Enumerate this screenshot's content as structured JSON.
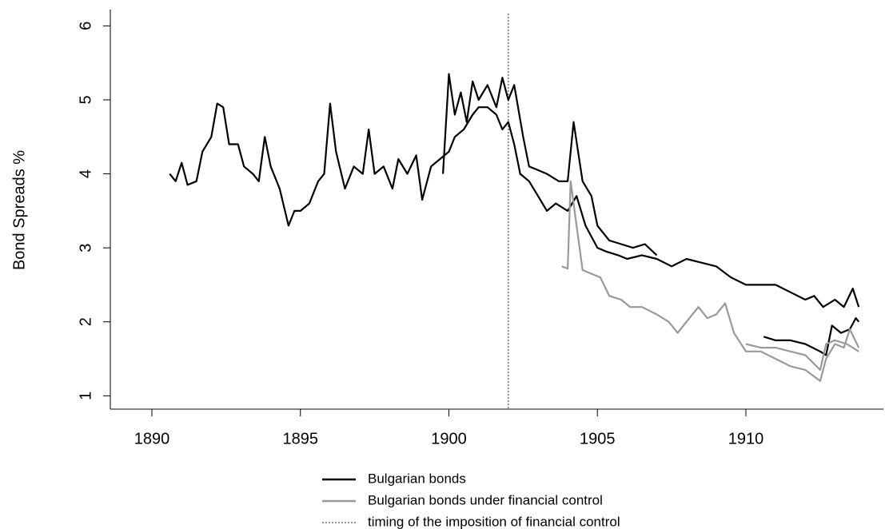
{
  "chart_data": {
    "type": "line",
    "ylabel": "Bond Spreads %",
    "xlim": [
      1888.6,
      1914.63
    ],
    "ylim": [
      0.82,
      6.22
    ],
    "xticks": [
      1890,
      1895,
      1900,
      1905,
      1910
    ],
    "yticks": [
      1,
      2,
      3,
      4,
      5,
      6
    ],
    "legend": "bottom",
    "annotations": [
      {
        "x": 1902,
        "label": "timing of the imposition of financial control"
      }
    ],
    "series": [
      {
        "name": "Bulgarian bonds",
        "color": "#000000",
        "x": [
          1890.6,
          1890.8,
          1891.0,
          1891.2,
          1891.5,
          1891.7,
          1892.0,
          1892.2,
          1892.4,
          1892.6,
          1892.9,
          1893.1,
          1893.4,
          1893.6,
          1893.8,
          1894.0,
          1894.3,
          1894.6,
          1894.8,
          1895.0,
          1895.3,
          1895.6,
          1895.8,
          1896.0,
          1896.2,
          1896.5,
          1896.8,
          1897.1,
          1897.3,
          1897.5,
          1897.8,
          1898.1,
          1898.3,
          1898.6,
          1898.9,
          1899.1,
          1899.4,
          1899.7,
          1900.0,
          1900.2,
          1900.5,
          1900.8,
          1901.0,
          1901.3,
          1901.6,
          1901.8,
          1902.0,
          1902.2,
          1902.4,
          1902.7,
          1903.0,
          1903.3,
          1903.6,
          1904.0,
          1904.3,
          1904.6,
          1905.0,
          1905.3,
          1905.7,
          1906.0,
          1906.5,
          1907.0,
          1907.5,
          1908.0,
          1908.5,
          1909.0,
          1909.5,
          1910.0,
          1910.5,
          1911.0,
          1911.5,
          1912.0,
          1912.3,
          1912.6,
          1913.0,
          1913.3,
          1913.6,
          1913.8
        ],
        "values": [
          4.0,
          3.9,
          4.15,
          3.85,
          3.9,
          4.3,
          4.5,
          4.95,
          4.9,
          4.4,
          4.4,
          4.1,
          4.0,
          3.9,
          4.5,
          4.1,
          3.8,
          3.3,
          3.5,
          3.5,
          3.6,
          3.9,
          4.0,
          4.95,
          4.3,
          3.8,
          4.1,
          4.0,
          4.6,
          4.0,
          4.1,
          3.8,
          4.2,
          4.0,
          4.25,
          3.65,
          4.1,
          4.2,
          4.3,
          4.5,
          4.6,
          4.8,
          4.9,
          4.9,
          4.8,
          4.6,
          4.7,
          4.4,
          4.0,
          3.9,
          3.7,
          3.5,
          3.6,
          3.5,
          3.7,
          3.3,
          3.0,
          2.95,
          2.9,
          2.85,
          2.9,
          2.85,
          2.75,
          2.85,
          2.8,
          2.75,
          2.6,
          2.5,
          2.5,
          2.5,
          2.4,
          2.3,
          2.35,
          2.2,
          2.3,
          2.2,
          2.45,
          2.2
        ]
      },
      {
        "color": "#000000",
        "x": [
          1899.8,
          1900.0,
          1900.2,
          1900.4,
          1900.6,
          1900.8,
          1901.0,
          1901.3,
          1901.6,
          1901.8,
          1902.0,
          1902.2,
          1902.5,
          1902.7,
          1903.0,
          1903.3,
          1903.7,
          1904.0,
          1904.2,
          1904.5,
          1904.8,
          1905.0,
          1905.4,
          1905.8,
          1906.2,
          1906.6,
          1907.0
        ],
        "values": [
          4.0,
          5.35,
          4.8,
          5.1,
          4.7,
          5.25,
          5.0,
          5.2,
          4.9,
          5.3,
          5.0,
          5.2,
          4.5,
          4.1,
          4.05,
          4.0,
          3.9,
          3.9,
          4.7,
          3.9,
          3.7,
          3.3,
          3.1,
          3.05,
          3.0,
          3.05,
          2.9
        ]
      },
      {
        "color": "#000000",
        "x": [
          1910.6,
          1911.0,
          1911.5,
          1912.0,
          1912.5,
          1912.7,
          1912.9,
          1913.2,
          1913.5,
          1913.7,
          1913.8
        ],
        "values": [
          1.8,
          1.75,
          1.75,
          1.7,
          1.6,
          1.55,
          1.95,
          1.85,
          1.9,
          2.05,
          2.0
        ]
      },
      {
        "name": "Bulgarian bonds under financial control",
        "color": "#999999",
        "x": [
          1903.8,
          1904.0,
          1904.1,
          1904.3,
          1904.5,
          1904.8,
          1905.1,
          1905.4,
          1905.8,
          1906.1,
          1906.5,
          1907.0,
          1907.4,
          1907.7,
          1908.0,
          1908.4,
          1908.7,
          1909.0,
          1909.3,
          1909.6,
          1910.0,
          1910.5,
          1911.0,
          1911.5,
          1912.0,
          1912.5,
          1912.7,
          1913.0,
          1913.3,
          1913.5,
          1913.8
        ],
        "values": [
          2.75,
          2.72,
          3.9,
          3.3,
          2.7,
          2.65,
          2.6,
          2.35,
          2.3,
          2.2,
          2.2,
          2.1,
          2.0,
          1.85,
          2.0,
          2.2,
          2.05,
          2.1,
          2.25,
          1.85,
          1.6,
          1.6,
          1.5,
          1.4,
          1.35,
          1.2,
          1.5,
          1.7,
          1.65,
          1.9,
          1.65
        ]
      },
      {
        "color": "#999999",
        "x": [
          1910.0,
          1910.5,
          1911.0,
          1911.5,
          1912.0,
          1912.5,
          1912.7,
          1913.0,
          1913.4,
          1913.8
        ],
        "values": [
          1.7,
          1.65,
          1.65,
          1.6,
          1.55,
          1.35,
          1.7,
          1.75,
          1.7,
          1.6
        ]
      }
    ]
  }
}
